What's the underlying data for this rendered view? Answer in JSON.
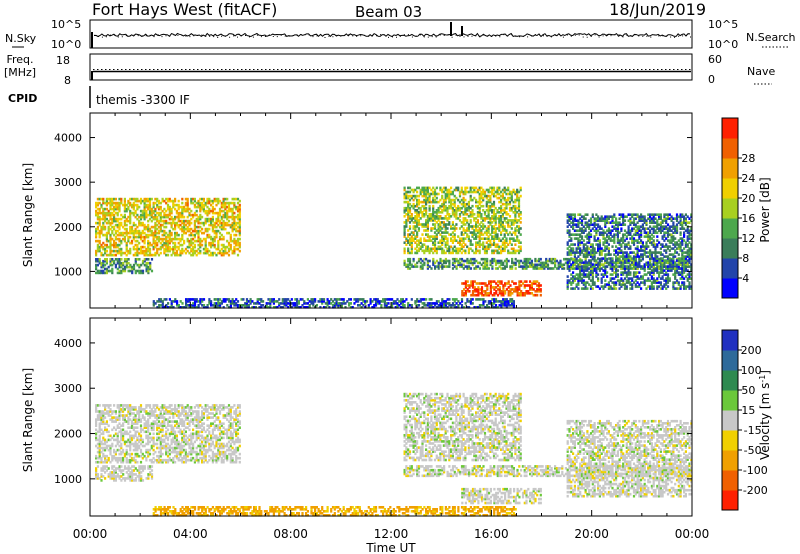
{
  "header": {
    "station": "Fort Hays West (fitACF)",
    "beam": "Beam 03",
    "date": "18/Jun/2019"
  },
  "noise_panel": {
    "left_label": "N.Sky",
    "right_label": "N.Search",
    "left_ticks": [
      "10^5",
      "10^0"
    ],
    "right_ticks": [
      "10^5",
      "10^0"
    ]
  },
  "freq_panel": {
    "left_label_1": "Freq.",
    "left_label_2": "[MHz]",
    "right_label": "Nave",
    "left_ticks": [
      "18",
      "8"
    ],
    "right_ticks": [
      "60",
      "0"
    ]
  },
  "cpid": {
    "label": "CPID",
    "program": "themis -3300 IF"
  },
  "chart_data": [
    {
      "type": "heatmap",
      "title": "Power",
      "ylabel": "Slant Range [km]",
      "xlabel": "Time UT",
      "x_ticks": [
        "00:00",
        "04:00",
        "08:00",
        "12:00",
        "16:00",
        "20:00",
        "00:00"
      ],
      "y_ticks": [
        "1000",
        "2000",
        "3000",
        "4000"
      ],
      "ylim": [
        180,
        4550
      ],
      "colorbar": {
        "label": "Power [dB]",
        "ticks": [
          "4",
          "8",
          "12",
          "16",
          "20",
          "24",
          "28"
        ],
        "range": [
          0,
          30
        ],
        "colors": [
          "#0000ff",
          "#2244aa",
          "#3a7d5a",
          "#4da84d",
          "#a8d020",
          "#f0d000",
          "#f0a000",
          "#f06000",
          "#ff2000"
        ]
      },
      "echo_regions": [
        {
          "name": "morning-arc",
          "t_start": 0.2,
          "t_end": 6.0,
          "range_min": 1350,
          "range_max": 2650,
          "power": 18
        },
        {
          "name": "low-band-early",
          "t_start": 0.2,
          "t_end": 2.5,
          "range_min": 950,
          "range_max": 1300,
          "power": 10
        },
        {
          "name": "evening-streak",
          "t_start": 12.5,
          "t_end": 17.2,
          "range_min": 1400,
          "range_max": 2900,
          "power": 15
        },
        {
          "name": "afternoon-band",
          "t_start": 12.5,
          "t_end": 24.0,
          "range_min": 1050,
          "range_max": 1300,
          "power": 10
        },
        {
          "name": "strong-patch",
          "t_start": 14.8,
          "t_end": 18.0,
          "range_min": 450,
          "range_max": 800,
          "power": 26
        },
        {
          "name": "late-sparse",
          "t_start": 19.0,
          "t_end": 24.0,
          "range_min": 600,
          "range_max": 2300,
          "power": 8
        },
        {
          "name": "ground-scatter-floor",
          "t_start": 2.5,
          "t_end": 17.0,
          "range_min": 180,
          "range_max": 400,
          "power": 6
        }
      ]
    },
    {
      "type": "heatmap",
      "title": "Velocity",
      "ylabel": "Slant Range [km]",
      "xlabel": "Time UT",
      "x_ticks": [
        "00:00",
        "04:00",
        "08:00",
        "12:00",
        "16:00",
        "20:00",
        "00:00"
      ],
      "y_ticks": [
        "1000",
        "2000",
        "3000",
        "4000"
      ],
      "ylim": [
        180,
        4550
      ],
      "colorbar": {
        "label": "Velocity [m s^-1]",
        "ticks": [
          "200",
          "100",
          "50",
          "15",
          "-15",
          "-50",
          "-100",
          "-200"
        ],
        "colors": [
          "#2030c0",
          "#2e6a9a",
          "#2e8a50",
          "#6bc83a",
          "#c8c8c8",
          "#f0d000",
          "#f0a000",
          "#f06000",
          "#ff2000"
        ]
      },
      "echo_regions": [
        {
          "name": "morning-arc",
          "t_start": 0.2,
          "t_end": 6.0,
          "range_min": 1350,
          "range_max": 2650,
          "velocity": 0
        },
        {
          "name": "low-band-early",
          "t_start": 0.2,
          "t_end": 2.5,
          "range_min": 950,
          "range_max": 1300,
          "velocity": 0
        },
        {
          "name": "evening-streak",
          "t_start": 12.5,
          "t_end": 17.2,
          "range_min": 1400,
          "range_max": 2900,
          "velocity": 0
        },
        {
          "name": "afternoon-band",
          "t_start": 12.5,
          "t_end": 24.0,
          "range_min": 1050,
          "range_max": 1300,
          "velocity": 0
        },
        {
          "name": "strong-patch",
          "t_start": 14.8,
          "t_end": 18.0,
          "range_min": 450,
          "range_max": 800,
          "velocity": 0
        },
        {
          "name": "late-sparse",
          "t_start": 19.0,
          "t_end": 24.0,
          "range_min": 600,
          "range_max": 2300,
          "velocity": 0
        },
        {
          "name": "ground-scatter-floor",
          "t_start": 2.5,
          "t_end": 17.0,
          "range_min": 180,
          "range_max": 400,
          "velocity": -60
        }
      ]
    }
  ]
}
